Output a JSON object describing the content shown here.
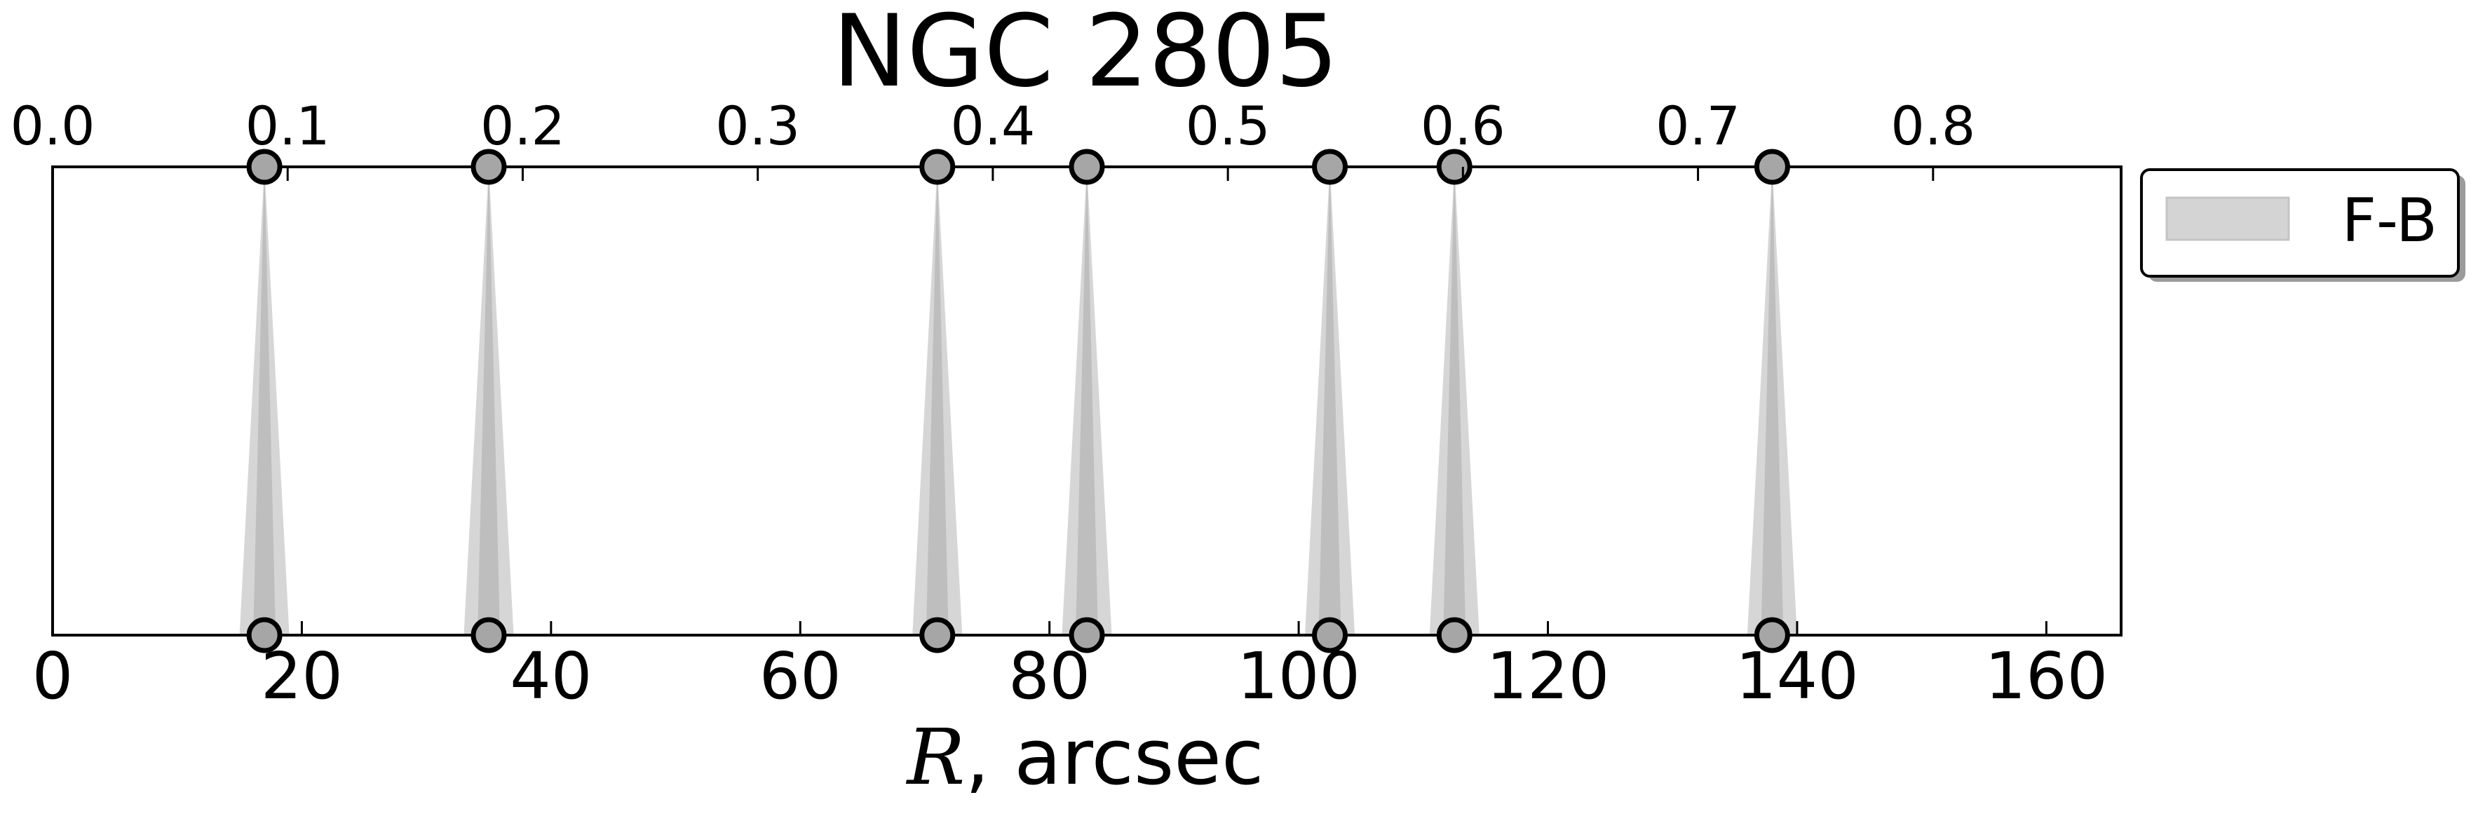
{
  "chart_data": {
    "type": "area",
    "title": "NGC 2805",
    "xlabel_symbol": "R",
    "xlabel_rest": ", arcsec",
    "xlim": [
      0,
      166
    ],
    "top_xlim": [
      0,
      0.88
    ],
    "bottom_ticks": [
      "0",
      "20",
      "40",
      "60",
      "80",
      "100",
      "120",
      "140",
      "160"
    ],
    "bottom_tick_values": [
      0,
      20,
      40,
      60,
      80,
      100,
      120,
      140,
      160
    ],
    "top_ticks": [
      "0.0",
      "0.1",
      "0.2",
      "0.3",
      "0.4",
      "0.5",
      "0.6",
      "0.7",
      "0.8"
    ],
    "top_tick_values": [
      0.0,
      0.1,
      0.2,
      0.3,
      0.4,
      0.5,
      0.6,
      0.7,
      0.8
    ],
    "series": [
      {
        "name": "F-B",
        "peaks_x": [
          17,
          35,
          71,
          83,
          102.5,
          112.5,
          138
        ],
        "half_width": 2,
        "color": "#c8c8c8"
      }
    ],
    "legend": {
      "placement": "outside-right-top",
      "entries": [
        "F-B"
      ]
    },
    "grid": false
  }
}
